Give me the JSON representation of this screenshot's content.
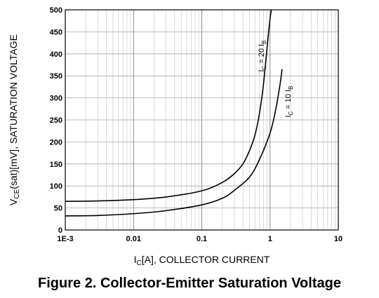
{
  "caption": "Figure 2. Collector-Emitter Saturation Voltage",
  "chart_data": {
    "type": "line",
    "title": "",
    "xlabel": {
      "pre": "I",
      "sub": "C",
      "post": "[A], COLLECTOR CURRENT"
    },
    "ylabel": {
      "pre": "V",
      "sub": "CE",
      "post": "(sat)[mV], SATURATION VOLTAGE"
    },
    "xscale": "log",
    "xlim": [
      0.001,
      10
    ],
    "ylim": [
      0,
      500
    ],
    "grid": true,
    "x_ticks": [
      {
        "value": 0.001,
        "label": "1E-3"
      },
      {
        "value": 0.01,
        "label": "0.01"
      },
      {
        "value": 0.1,
        "label": "0.1"
      },
      {
        "value": 1,
        "label": "1"
      },
      {
        "value": 10,
        "label": "10"
      }
    ],
    "y_ticks": [
      0,
      50,
      100,
      150,
      200,
      250,
      300,
      350,
      400,
      450,
      500
    ],
    "series": [
      {
        "name": "IC = 20 IB",
        "label": {
          "pre": "I",
          "sub1": "C",
          "mid": " = 20 I",
          "sub2": "B"
        },
        "x": [
          0.001,
          0.003,
          0.01,
          0.03,
          0.1,
          0.2,
          0.3,
          0.4,
          0.5,
          0.6,
          0.7,
          0.8,
          0.9,
          1.0,
          1.05
        ],
        "y": [
          65,
          66,
          69,
          75,
          89,
          108,
          128,
          150,
          180,
          215,
          265,
          330,
          410,
          480,
          500
        ]
      },
      {
        "name": "IC = 10 IB",
        "label": {
          "pre": "I",
          "sub1": "C",
          "mid": " = 10 I",
          "sub2": "B"
        },
        "x": [
          0.001,
          0.003,
          0.01,
          0.03,
          0.1,
          0.2,
          0.3,
          0.5,
          0.7,
          1.0,
          1.2,
          1.4,
          1.5
        ],
        "y": [
          32,
          33,
          37,
          44,
          57,
          72,
          90,
          120,
          160,
          220,
          270,
          330,
          365
        ]
      }
    ]
  }
}
